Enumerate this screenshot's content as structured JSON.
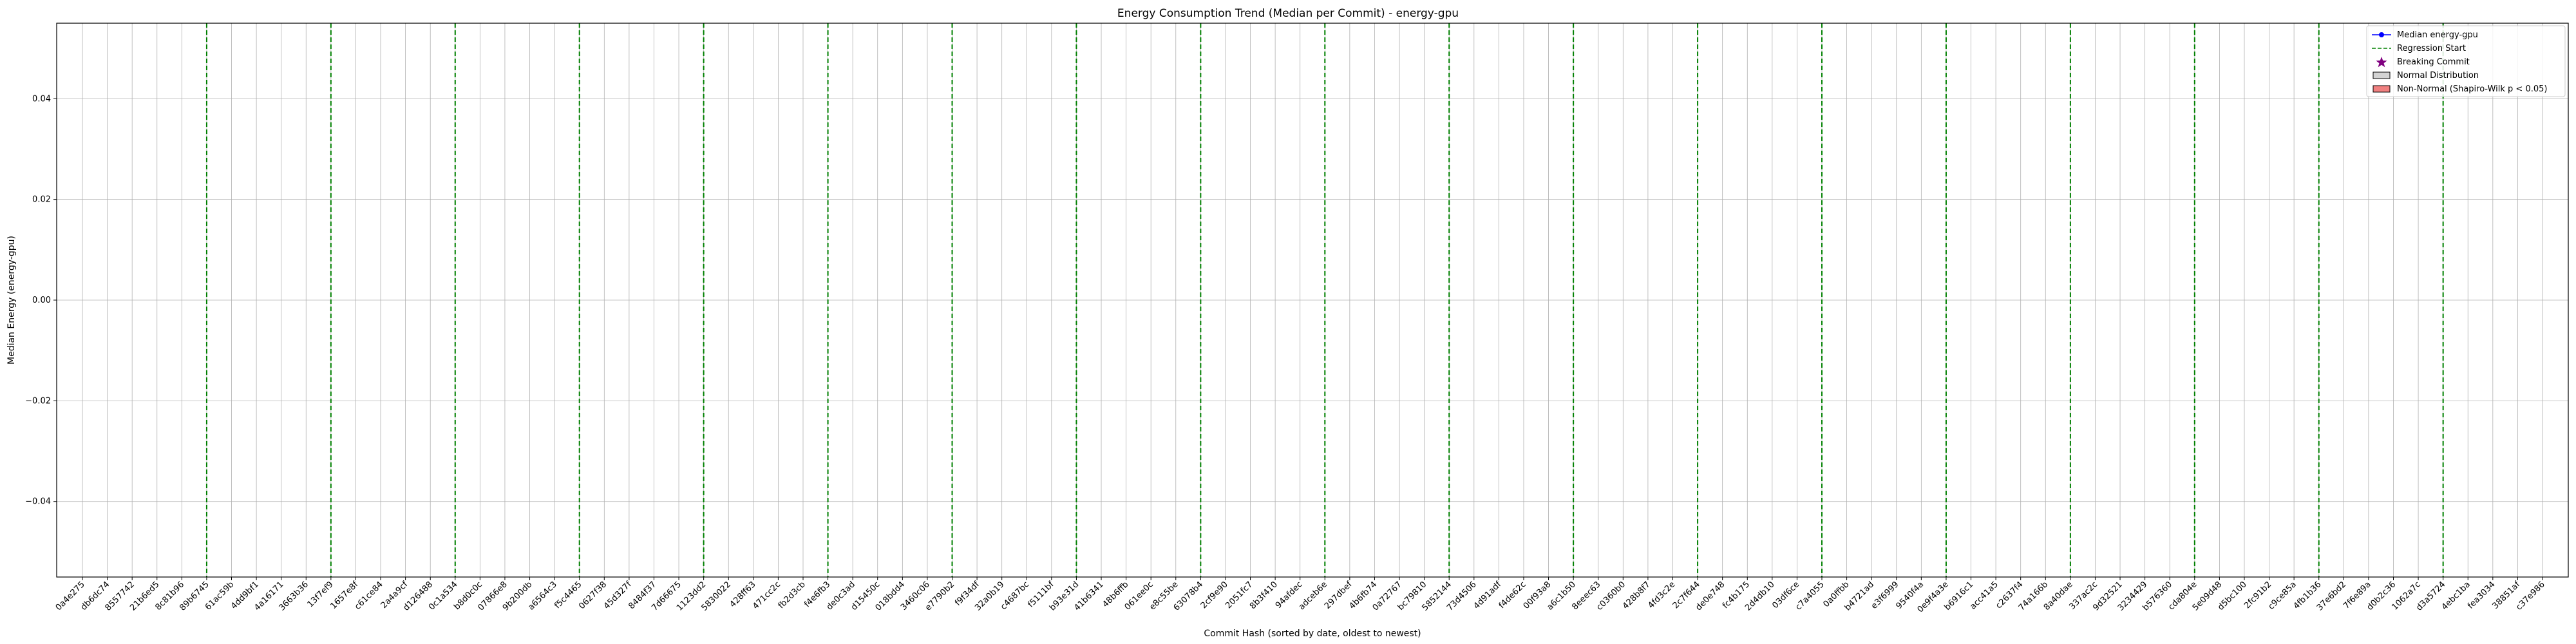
{
  "chart_data": {
    "type": "line",
    "title": "Energy Consumption Trend (Median per Commit) - energy-gpu",
    "xlabel": "Commit Hash (sorted by date, oldest to newest)",
    "ylabel": "Median Energy (energy-gpu)",
    "ylim": [
      -0.055,
      0.055
    ],
    "yticks": [
      -0.04,
      -0.02,
      0.0,
      0.02,
      0.04
    ],
    "ytick_labels": [
      "−0.04",
      "−0.02",
      "0.00",
      "0.02",
      "0.04"
    ],
    "grid": true,
    "legend_position": "top-right",
    "categories": [
      "0a4e275",
      "db6dc74",
      "8557742",
      "21b6ed5",
      "8c81b96",
      "89b6745",
      "61ac59b",
      "4dd9bf1",
      "4a16171",
      "3663b36",
      "13f7ef9",
      "1657e8f",
      "c61ce84",
      "2a4a9cf",
      "d126488",
      "0c1a534",
      "b8d0c0c",
      "07866e8",
      "9b200db",
      "a6564c3",
      "f5c4465",
      "0627f38",
      "45d327f",
      "8484f37",
      "7d66675",
      "1123dd2",
      "5830022",
      "428ff63",
      "471cc2c",
      "fb2d3cb",
      "f4e6fb3",
      "de0c3ad",
      "d15450c",
      "018bdd4",
      "3460c06",
      "e7790b2",
      "f9f34df",
      "32a0b19",
      "c4687bc",
      "f5111bf",
      "b93e31d",
      "41b6341",
      "48b6ffb",
      "061ee0c",
      "e8c55be",
      "63078b4",
      "2cf9e90",
      "2051fc7",
      "8b3f410",
      "94afdec",
      "adceb6e",
      "297dbef",
      "4b6fb74",
      "0a72767",
      "bc79810",
      "5852144",
      "73d4506",
      "4d91adf",
      "f4de62c",
      "00f93a8",
      "a6c1b50",
      "8eeec63",
      "c0360b0",
      "428b8f7",
      "4fd3c2e",
      "2c7f644",
      "de0e748",
      "fc4b175",
      "2d4db10",
      "03df6ce",
      "c7a4055",
      "0a0ffbb",
      "b4721ad",
      "e3f6999",
      "9540f4a",
      "0e9f4a3e",
      "b6916c1",
      "acc41a5",
      "c2637f4",
      "74a166b",
      "8a40dae",
      "337ac2c",
      "9d32521",
      "3234429",
      "b576360",
      "cda804e",
      "5e09d48",
      "d5bc100",
      "2fc91b2",
      "c9ce85a",
      "4fb1b36",
      "37e6bd2",
      "7f6e89a",
      "d0b2c36",
      "1062a7c",
      "d3a5724",
      "4ebc1ba",
      "fea3034",
      "38851af",
      "c37e986"
    ],
    "regression_start_labels": [
      "89b6745",
      "13f7ef9",
      "0c1a534",
      "f5c4465",
      "1123dd2",
      "f4e6fb3",
      "e7790b2",
      "b93e31d",
      "63078b4",
      "adceb6e",
      "5852144",
      "a6c1b50",
      "2c7f644",
      "c7a4055",
      "0e9f4a3e",
      "8a40dae",
      "cda804e",
      "4fb1b36",
      "d3a5724"
    ],
    "legend": [
      "Median energy-gpu",
      "Regression Start",
      "Breaking Commit",
      "Normal Distribution",
      "Non-Normal (Shapiro-Wilk p < 0.05)"
    ],
    "colors": {
      "median_line": "#0000ff",
      "regression_line": "#008000",
      "breaking_marker": "#800080",
      "normal_fill": "#d3d3d3",
      "non_normal_fill": "#f08080",
      "grid": "#b0b0b0"
    }
  }
}
